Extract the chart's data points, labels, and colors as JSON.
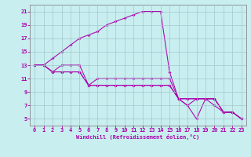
{
  "bg_color": "#c8eef0",
  "line_color": "#aa00aa",
  "grid_color": "#a0c8cc",
  "xlabel": "Windchill (Refroidissement éolien,°C)",
  "xlim": [
    -0.5,
    23.5
  ],
  "ylim": [
    4,
    22
  ],
  "xticks": [
    0,
    1,
    2,
    3,
    4,
    5,
    6,
    7,
    8,
    9,
    10,
    11,
    12,
    13,
    14,
    15,
    16,
    17,
    18,
    19,
    20,
    21,
    22,
    23
  ],
  "yticks": [
    5,
    7,
    9,
    11,
    13,
    15,
    17,
    19,
    21
  ],
  "series": [
    {
      "x": [
        0,
        1,
        2,
        3,
        4,
        5,
        6,
        7,
        8,
        9,
        10,
        11,
        12,
        13,
        14,
        15,
        16,
        17,
        18,
        19,
        20,
        21,
        22,
        23
      ],
      "y": [
        13,
        13,
        14,
        15,
        16,
        17,
        17.5,
        18,
        19,
        19.5,
        20,
        20.5,
        21,
        21,
        21,
        12,
        8,
        7,
        5,
        8,
        8,
        6,
        6,
        5
      ]
    },
    {
      "x": [
        0,
        1,
        2,
        3,
        4,
        5,
        6,
        7,
        8,
        9,
        10,
        11,
        12,
        13,
        14,
        15,
        16,
        17,
        18,
        19,
        20,
        21,
        22,
        23
      ],
      "y": [
        13,
        13,
        12,
        13,
        13,
        13,
        10,
        11,
        11,
        11,
        11,
        11,
        11,
        11,
        11,
        11,
        8,
        8,
        8,
        8,
        8,
        6,
        6,
        5
      ]
    },
    {
      "x": [
        0,
        1,
        2,
        3,
        4,
        5,
        6,
        7,
        8,
        9,
        10,
        11,
        12,
        13,
        14,
        15,
        16,
        17,
        18,
        19,
        20,
        21,
        22,
        23
      ],
      "y": [
        13,
        13,
        12,
        12,
        12,
        12,
        10,
        10,
        10,
        10,
        10,
        10,
        10,
        10,
        10,
        10,
        8,
        8,
        8,
        8,
        8,
        6,
        6,
        5
      ]
    },
    {
      "x": [
        0,
        1,
        2,
        3,
        4,
        5,
        6,
        7,
        8,
        9,
        10,
        11,
        12,
        13,
        14,
        15,
        16,
        17,
        18,
        19,
        20,
        21,
        22,
        23
      ],
      "y": [
        13,
        13,
        12,
        12,
        12,
        12,
        10,
        10,
        10,
        10,
        10,
        10,
        10,
        10,
        10,
        10,
        8,
        7,
        8,
        8,
        7,
        6,
        6,
        5
      ]
    }
  ]
}
